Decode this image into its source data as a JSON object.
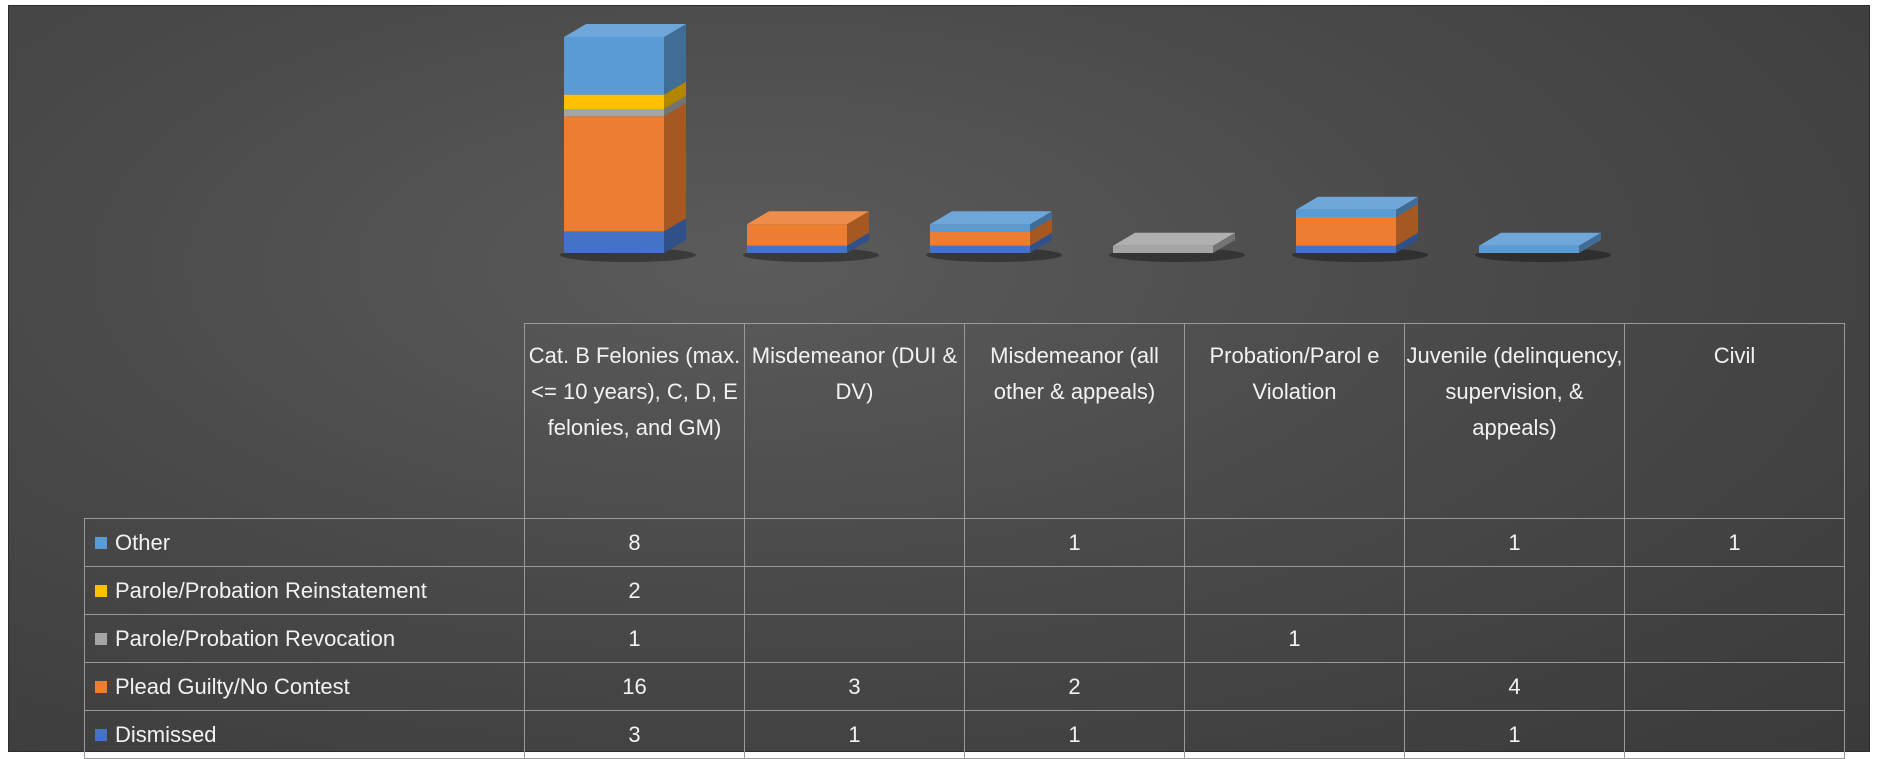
{
  "chart_data": {
    "type": "bar",
    "stacked": true,
    "three_d": true,
    "categories": [
      "Cat. B Felonies (max. <= 10 years), C, D, E felonies, and GM)",
      "Misdemeanor (DUI & DV)",
      "Misdemeanor (all other & appeals)",
      "Probation/Parol e Violation",
      "Juvenile (delinquency, supervision, & appeals)",
      "Civil"
    ],
    "series": [
      {
        "name": "Dismissed",
        "color": "#4472C4",
        "values": [
          3,
          1,
          1,
          null,
          1,
          null
        ]
      },
      {
        "name": "Plead Guilty/No Contest",
        "color": "#ED7D31",
        "values": [
          16,
          3,
          2,
          null,
          4,
          null
        ]
      },
      {
        "name": "Parole/Probation Revocation",
        "color": "#A5A5A5",
        "values": [
          1,
          null,
          null,
          1,
          null,
          null
        ]
      },
      {
        "name": "Parole/Probation Reinstatement",
        "color": "#FFC000",
        "values": [
          2,
          null,
          null,
          null,
          null,
          null
        ]
      },
      {
        "name": "Other",
        "color": "#5B9BD5",
        "values": [
          8,
          null,
          1,
          null,
          1,
          1
        ]
      }
    ],
    "table_row_order": [
      "Other",
      "Parole/Probation Reinstatement",
      "Parole/Probation Revocation",
      "Plead Guilty/No Contest",
      "Dismissed"
    ],
    "legend": "data-table",
    "grid": false,
    "background": "#4a4a4a"
  }
}
